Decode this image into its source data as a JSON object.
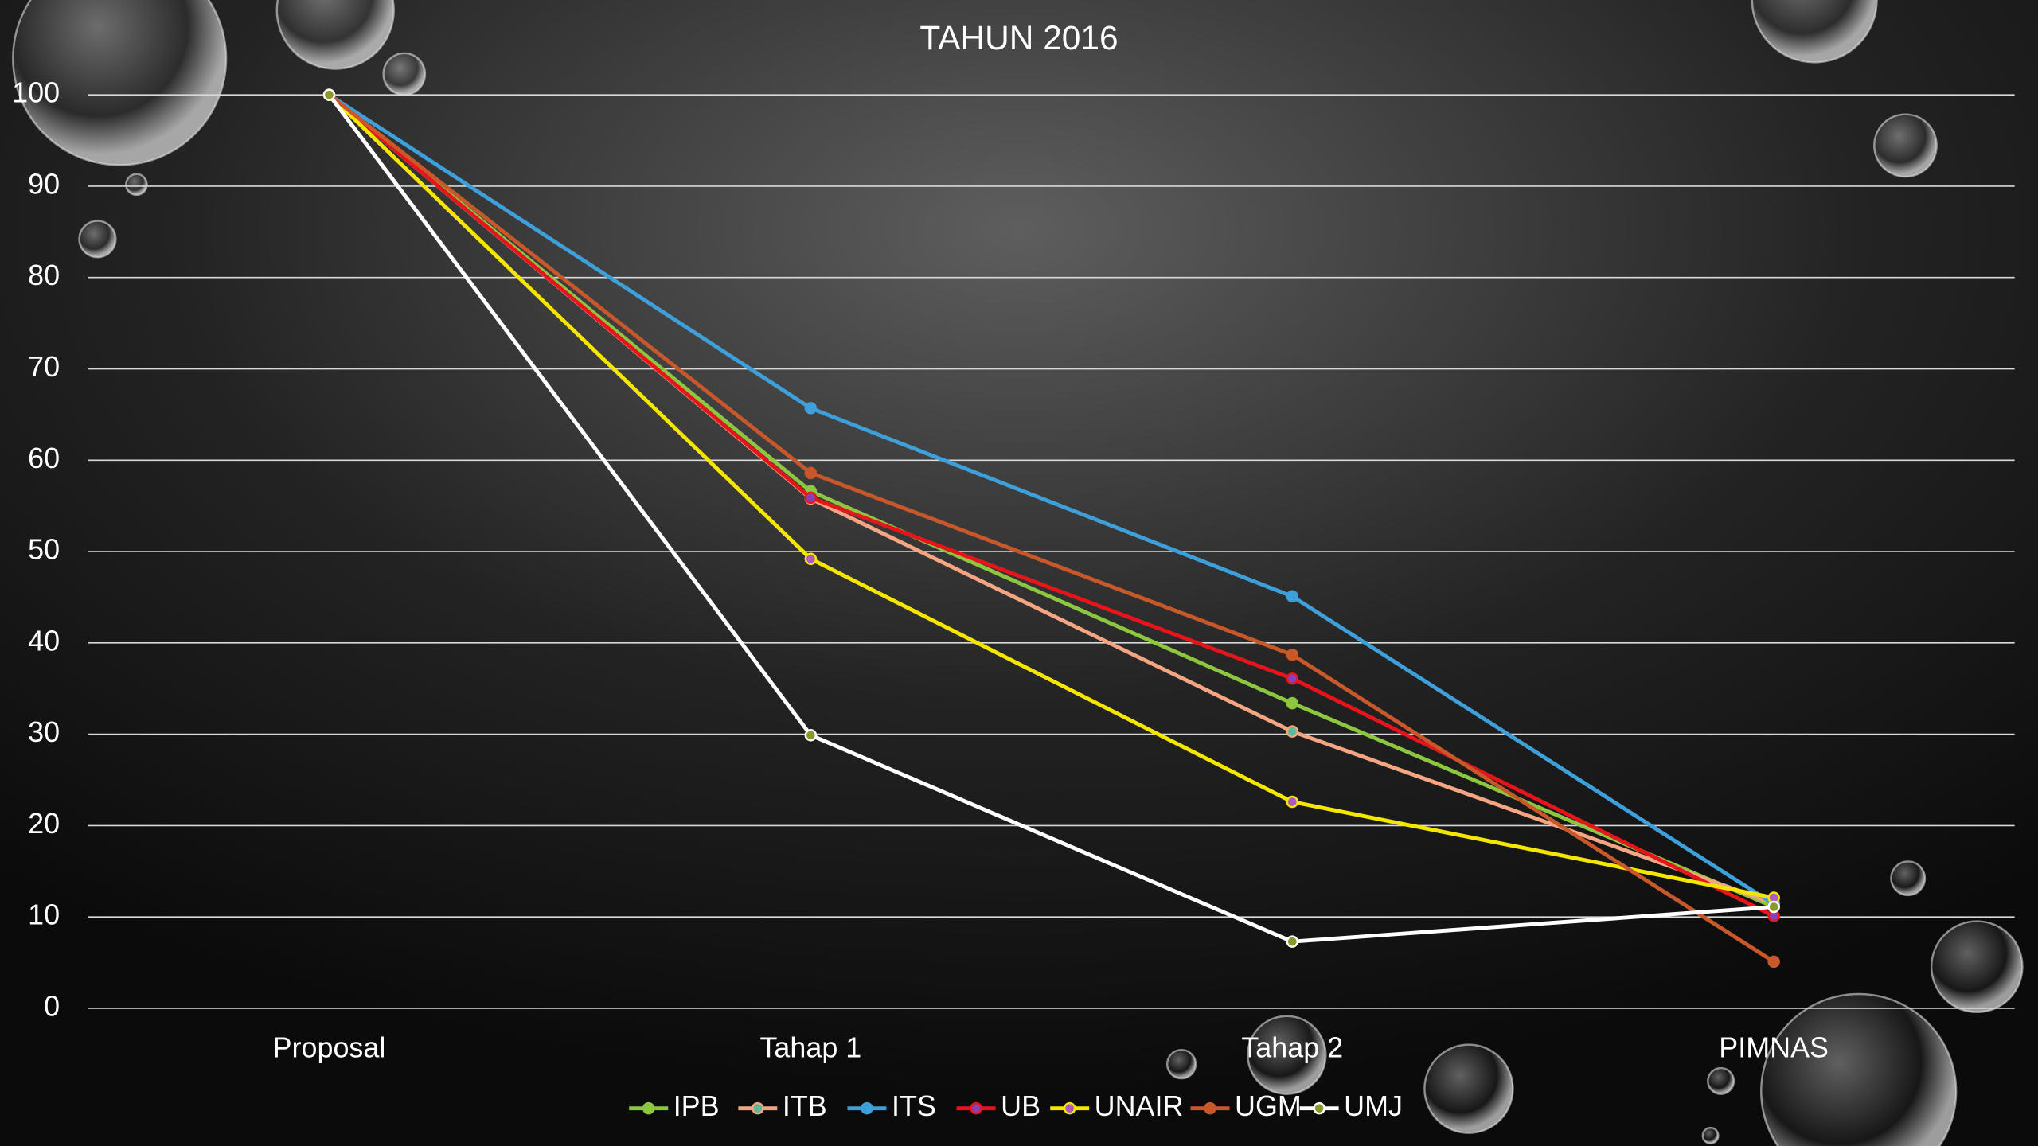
{
  "chart_data": {
    "type": "line",
    "title": "TAHUN 2016",
    "categories": [
      "Proposal",
      "Tahap 1",
      "Tahap 2",
      "PIMNAS"
    ],
    "series": [
      {
        "name": "IPB",
        "color": "#8dc63f",
        "marker_color": "#8dc63f",
        "values": [
          100,
          56.6,
          33.4,
          11.1
        ]
      },
      {
        "name": "ITB",
        "color": "#f4a582",
        "marker_color": "#5fb89a",
        "values": [
          100,
          55.8,
          30.3,
          11.5
        ]
      },
      {
        "name": "ITS",
        "color": "#3ea0da",
        "marker_color": "#3ea0da",
        "values": [
          100,
          65.7,
          45.1,
          11.4
        ]
      },
      {
        "name": "UB",
        "color": "#e8141c",
        "marker_color": "#8a3fb5",
        "values": [
          100,
          55.9,
          36.1,
          10.1
        ]
      },
      {
        "name": "UNAIR",
        "color": "#f5e600",
        "marker_color": "#b05ac8",
        "values": [
          100,
          49.2,
          22.6,
          12.1
        ]
      },
      {
        "name": "UGM",
        "color": "#c8582a",
        "marker_color": "#c8582a",
        "values": [
          100,
          58.6,
          38.7,
          5.1
        ]
      },
      {
        "name": "UMJ",
        "color": "#ffffff",
        "marker_color": "#8a9a2a",
        "values": [
          100,
          29.9,
          7.3,
          11.1
        ]
      }
    ],
    "ylim": [
      0,
      100
    ],
    "yticks": [
      0,
      10,
      20,
      30,
      40,
      50,
      60,
      70,
      80,
      90,
      100
    ],
    "grid": true,
    "legend": "bottom"
  }
}
